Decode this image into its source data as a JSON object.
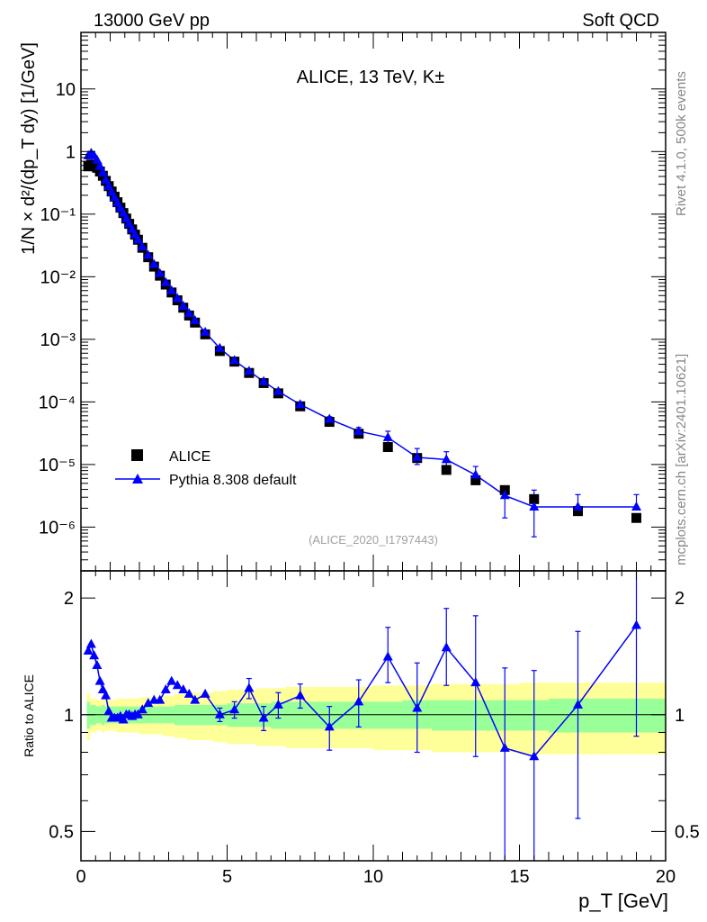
{
  "header": {
    "left_label": "13000 GeV pp",
    "right_label": "Soft QCD"
  },
  "side_labels": {
    "rivet": "Rivet 4.1.0,  500k events",
    "mcplots": "mcplots.cern.ch [arXiv:2401.10621]"
  },
  "colors": {
    "data": "#000000",
    "mc": "#0000ff",
    "band_inner": "#99ff99",
    "band_outer": "#ffff99"
  },
  "chart_data": [
    {
      "type": "scatter",
      "panel": "main",
      "title": "ALICE, 13 TeV, K±",
      "xlabel": "",
      "ylabel": "1/N × d²/(dp_T dy) [1/GeV]",
      "yscale": "log",
      "xlim": [
        0,
        20
      ],
      "ylim": [
        2e-07,
        80
      ],
      "y_ticks": [
        "10⁻⁶",
        "10⁻⁵",
        "10⁻⁴",
        "10⁻³",
        "10⁻²",
        "10⁻¹",
        "1",
        "10"
      ],
      "y_tick_values": [
        1e-06,
        1e-05,
        0.0001,
        0.001,
        0.01,
        0.1,
        1,
        10
      ],
      "watermark": "(ALICE_2020_I1797443)",
      "legend": {
        "position": "bottom-left",
        "entries": [
          "ALICE",
          "Pythia 8.308 default"
        ]
      },
      "series": [
        {
          "name": "ALICE",
          "marker": "square",
          "x": [
            0.25,
            0.35,
            0.45,
            0.55,
            0.65,
            0.75,
            0.85,
            0.95,
            1.05,
            1.15,
            1.25,
            1.35,
            1.45,
            1.55,
            1.65,
            1.75,
            1.85,
            1.95,
            2.1,
            2.3,
            2.5,
            2.7,
            2.9,
            3.1,
            3.3,
            3.5,
            3.7,
            3.9,
            4.25,
            4.75,
            5.25,
            5.75,
            6.25,
            6.75,
            7.5,
            8.5,
            9.5,
            10.5,
            11.5,
            12.5,
            13.5,
            14.5,
            15.5,
            17.0,
            19.0
          ],
          "y": [
            0.58,
            0.62,
            0.6,
            0.55,
            0.48,
            0.41,
            0.34,
            0.28,
            0.23,
            0.19,
            0.155,
            0.127,
            0.104,
            0.085,
            0.07,
            0.057,
            0.047,
            0.039,
            0.029,
            0.0205,
            0.0145,
            0.0104,
            0.0075,
            0.0056,
            0.0042,
            0.0032,
            0.0024,
            0.00185,
            0.0012,
            0.00065,
            0.00044,
            0.00029,
            0.0002,
            0.000137,
            8.5e-05,
            4.8e-05,
            3.1e-05,
            1.9e-05,
            1.27e-05,
            8.2e-06,
            5.6e-06,
            3.9e-06,
            2.8e-06,
            1.8e-06,
            1.4e-06
          ]
        },
        {
          "name": "Pythia 8.308 default",
          "marker": "triangle",
          "x": [
            0.25,
            0.35,
            0.45,
            0.55,
            0.65,
            0.75,
            0.85,
            0.95,
            1.05,
            1.15,
            1.25,
            1.35,
            1.45,
            1.55,
            1.65,
            1.75,
            1.85,
            1.95,
            2.1,
            2.3,
            2.5,
            2.7,
            2.9,
            3.1,
            3.3,
            3.5,
            3.7,
            3.9,
            4.25,
            4.75,
            5.25,
            5.75,
            6.25,
            6.75,
            7.5,
            8.5,
            9.5,
            10.5,
            11.5,
            12.5,
            13.5,
            14.5,
            15.5,
            17.0,
            19.0
          ],
          "y": [
            0.86,
            0.94,
            0.86,
            0.73,
            0.58,
            0.46,
            0.35,
            0.28,
            0.225,
            0.185,
            0.15,
            0.125,
            0.104,
            0.085,
            0.07,
            0.057,
            0.047,
            0.039,
            0.03,
            0.022,
            0.0158,
            0.0113,
            0.0081,
            0.006,
            0.0045,
            0.0034,
            0.0026,
            0.002,
            0.0013,
            0.00072,
            0.00046,
            0.00031,
            0.000212,
            0.000147,
            9.1e-05,
            5.3e-05,
            3.4e-05,
            2.7e-05,
            1.3e-05,
            1.2e-05,
            6.8e-06,
            3.2e-06,
            2.1e-06,
            2.1e-06,
            2.1e-06
          ],
          "err_lo": [
            0,
            0,
            0,
            0,
            0,
            0,
            0,
            0,
            0,
            0,
            0,
            0,
            0,
            0,
            0,
            0,
            0,
            0,
            0,
            0,
            0,
            0,
            0,
            0,
            0,
            0,
            0,
            0,
            0,
            0,
            0,
            0,
            0,
            0,
            0,
            5e-06,
            5e-06,
            5e-06,
            3e-06,
            3e-06,
            1.5e-06,
            1.8e-06,
            1.4e-06,
            0,
            0
          ],
          "err_hi": [
            0,
            0,
            0,
            0,
            0,
            0,
            0,
            0,
            0,
            0,
            0,
            0,
            0,
            0,
            0,
            0,
            0,
            0,
            0,
            0,
            0,
            0,
            0,
            0,
            0,
            0,
            0,
            0,
            0,
            0,
            0,
            0,
            0,
            0,
            0,
            5e-06,
            5e-06,
            7e-06,
            5e-06,
            4e-06,
            2.5e-06,
            1.2e-06,
            1.8e-06,
            1.2e-06,
            1.2e-06
          ]
        }
      ]
    },
    {
      "type": "scatter",
      "panel": "ratio",
      "xlabel": "p_T [GeV]",
      "ylabel": "Ratio to ALICE",
      "yscale": "log",
      "xlim": [
        0,
        20
      ],
      "ylim": [
        0.42,
        2.35
      ],
      "x_ticks": [
        0,
        5,
        10,
        15,
        20
      ],
      "y_ticks": [
        0.5,
        1,
        2
      ],
      "reference_line": 1,
      "bands": {
        "x_edges": [
          0.2,
          0.3,
          0.4,
          0.5,
          0.6,
          0.7,
          0.8,
          0.9,
          1.0,
          1.2,
          1.4,
          1.6,
          1.8,
          2.0,
          2.4,
          2.8,
          3.2,
          3.6,
          4.0,
          4.5,
          5.0,
          5.5,
          6.0,
          6.5,
          7.0,
          8.0,
          9.0,
          10.0,
          11.0,
          12.0,
          13.0,
          14.0,
          15.0,
          16.0,
          18.0,
          20.0
        ],
        "inner_lo": [
          0.92,
          0.94,
          0.94,
          0.95,
          0.95,
          0.94,
          0.95,
          0.95,
          0.95,
          0.95,
          0.95,
          0.95,
          0.95,
          0.95,
          0.95,
          0.95,
          0.94,
          0.94,
          0.94,
          0.94,
          0.93,
          0.93,
          0.93,
          0.92,
          0.92,
          0.92,
          0.92,
          0.92,
          0.92,
          0.91,
          0.91,
          0.91,
          0.91,
          0.9,
          0.9
        ],
        "inner_hi": [
          1.08,
          1.06,
          1.06,
          1.05,
          1.05,
          1.06,
          1.05,
          1.05,
          1.05,
          1.05,
          1.05,
          1.05,
          1.05,
          1.05,
          1.05,
          1.05,
          1.06,
          1.06,
          1.06,
          1.06,
          1.07,
          1.07,
          1.07,
          1.08,
          1.08,
          1.08,
          1.08,
          1.08,
          1.09,
          1.09,
          1.09,
          1.09,
          1.09,
          1.1,
          1.1
        ],
        "outer_lo": [
          0.86,
          0.9,
          0.9,
          0.91,
          0.91,
          0.9,
          0.91,
          0.91,
          0.91,
          0.9,
          0.9,
          0.9,
          0.9,
          0.89,
          0.89,
          0.88,
          0.87,
          0.86,
          0.86,
          0.85,
          0.84,
          0.84,
          0.83,
          0.83,
          0.82,
          0.82,
          0.82,
          0.81,
          0.81,
          0.8,
          0.8,
          0.8,
          0.79,
          0.79,
          0.79
        ],
        "outer_hi": [
          1.14,
          1.1,
          1.1,
          1.09,
          1.09,
          1.1,
          1.09,
          1.09,
          1.09,
          1.1,
          1.1,
          1.1,
          1.1,
          1.11,
          1.11,
          1.12,
          1.13,
          1.14,
          1.14,
          1.15,
          1.16,
          1.16,
          1.17,
          1.17,
          1.18,
          1.18,
          1.18,
          1.19,
          1.19,
          1.2,
          1.2,
          1.2,
          1.21,
          1.21,
          1.21
        ]
      },
      "series": [
        {
          "name": "Pythia 8.308 default / ALICE",
          "marker": "triangle",
          "x": [
            0.25,
            0.35,
            0.45,
            0.55,
            0.65,
            0.75,
            0.85,
            0.95,
            1.05,
            1.15,
            1.25,
            1.35,
            1.45,
            1.55,
            1.65,
            1.75,
            1.85,
            1.95,
            2.1,
            2.3,
            2.5,
            2.7,
            2.9,
            3.1,
            3.3,
            3.5,
            3.7,
            3.9,
            4.25,
            4.75,
            5.25,
            5.75,
            6.25,
            6.75,
            7.5,
            8.5,
            9.5,
            10.5,
            11.5,
            12.5,
            13.5,
            14.5,
            15.5,
            17.0,
            19.0
          ],
          "y": [
            1.46,
            1.52,
            1.42,
            1.34,
            1.22,
            1.16,
            1.12,
            1.02,
            0.98,
            0.98,
            0.98,
            0.99,
            0.97,
            1.0,
            1.0,
            0.99,
            1.0,
            1.0,
            1.03,
            1.07,
            1.09,
            1.09,
            1.16,
            1.22,
            1.19,
            1.16,
            1.13,
            1.09,
            1.13,
            1.0,
            1.03,
            1.17,
            0.98,
            1.06,
            1.12,
            0.93,
            1.08,
            1.41,
            1.04,
            1.49,
            1.21,
            0.82,
            0.78,
            1.06,
            1.7
          ],
          "err_lo": [
            0,
            0,
            0,
            0,
            0,
            0,
            0,
            0,
            0,
            0,
            0,
            0,
            0,
            0,
            0,
            0,
            0,
            0,
            0,
            0,
            0,
            0,
            0,
            0,
            0,
            0,
            0,
            0,
            0,
            0.04,
            0.05,
            0.07,
            0.07,
            0.08,
            0.08,
            0.12,
            0.15,
            0.2,
            0.24,
            0.3,
            0.43,
            0.45,
            0.45,
            0.52,
            0.82
          ],
          "err_hi": [
            0,
            0,
            0,
            0,
            0,
            0,
            0,
            0,
            0,
            0,
            0,
            0,
            0,
            0,
            0,
            0,
            0,
            0,
            0,
            0,
            0,
            0,
            0,
            0,
            0,
            0,
            0,
            0,
            0,
            0.04,
            0.05,
            0.07,
            0.07,
            0.08,
            0.08,
            0.12,
            0.15,
            0.27,
            0.32,
            0.39,
            0.59,
            0.5,
            0.52,
            0.58,
            0.75
          ]
        }
      ]
    }
  ]
}
